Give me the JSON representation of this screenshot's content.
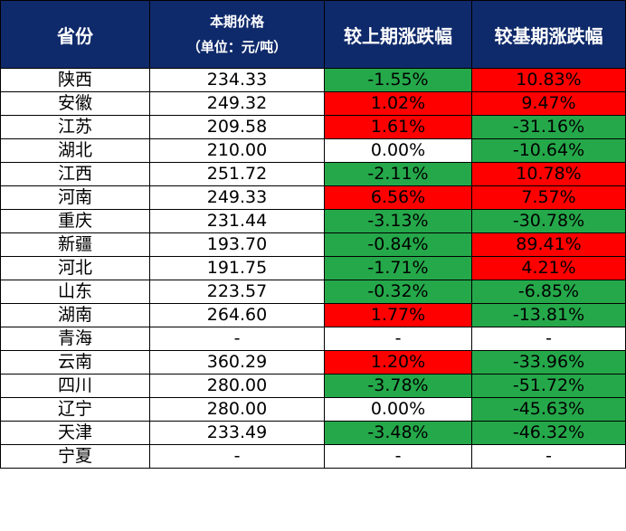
{
  "table": {
    "headers": {
      "province": "省份",
      "price_line1": "本期价格",
      "price_line2": "（单位：元/吨）",
      "change_prev": "较上期涨跌幅",
      "change_base": "较基期涨跌幅"
    },
    "colors": {
      "up": "#ff0000",
      "down": "#25a84a",
      "flat": "#ffffff",
      "header": "#0f2a6b"
    },
    "rows": [
      {
        "province": "陕西",
        "price": "234.33",
        "change_prev": "-1.55%",
        "prev_state": "down",
        "change_base": "10.83%",
        "base_state": "up"
      },
      {
        "province": "安徽",
        "price": "249.32",
        "change_prev": "1.02%",
        "prev_state": "up",
        "change_base": "9.47%",
        "base_state": "up"
      },
      {
        "province": "江苏",
        "price": "209.58",
        "change_prev": "1.61%",
        "prev_state": "up",
        "change_base": "-31.16%",
        "base_state": "down"
      },
      {
        "province": "湖北",
        "price": "210.00",
        "change_prev": "0.00%",
        "prev_state": "flat",
        "change_base": "-10.64%",
        "base_state": "down"
      },
      {
        "province": "江西",
        "price": "251.72",
        "change_prev": "-2.11%",
        "prev_state": "down",
        "change_base": "10.78%",
        "base_state": "up"
      },
      {
        "province": "河南",
        "price": "249.33",
        "change_prev": "6.56%",
        "prev_state": "up",
        "change_base": "7.57%",
        "base_state": "up"
      },
      {
        "province": "重庆",
        "price": "231.44",
        "change_prev": "-3.13%",
        "prev_state": "down",
        "change_base": "-30.78%",
        "base_state": "down"
      },
      {
        "province": "新疆",
        "price": "193.70",
        "change_prev": "-0.84%",
        "prev_state": "down",
        "change_base": "89.41%",
        "base_state": "up"
      },
      {
        "province": "河北",
        "price": "191.75",
        "change_prev": "-1.71%",
        "prev_state": "down",
        "change_base": "4.21%",
        "base_state": "up"
      },
      {
        "province": "山东",
        "price": "223.57",
        "change_prev": "-0.32%",
        "prev_state": "down",
        "change_base": "-6.85%",
        "base_state": "down"
      },
      {
        "province": "湖南",
        "price": "264.60",
        "change_prev": "1.77%",
        "prev_state": "up",
        "change_base": "-13.81%",
        "base_state": "down"
      },
      {
        "province": "青海",
        "price": "-",
        "change_prev": "-",
        "prev_state": "flat",
        "change_base": "-",
        "base_state": "flat"
      },
      {
        "province": "云南",
        "price": "360.29",
        "change_prev": "1.20%",
        "prev_state": "up",
        "change_base": "-33.96%",
        "base_state": "down"
      },
      {
        "province": "四川",
        "price": "280.00",
        "change_prev": "-3.78%",
        "prev_state": "down",
        "change_base": "-51.72%",
        "base_state": "down"
      },
      {
        "province": "辽宁",
        "price": "280.00",
        "change_prev": "0.00%",
        "prev_state": "flat",
        "change_base": "-45.63%",
        "base_state": "down"
      },
      {
        "province": "天津",
        "price": "233.49",
        "change_prev": "-3.48%",
        "prev_state": "down",
        "change_base": "-46.32%",
        "base_state": "down"
      },
      {
        "province": "宁夏",
        "price": "-",
        "change_prev": "-",
        "prev_state": "flat",
        "change_base": "-",
        "base_state": "flat"
      }
    ]
  }
}
